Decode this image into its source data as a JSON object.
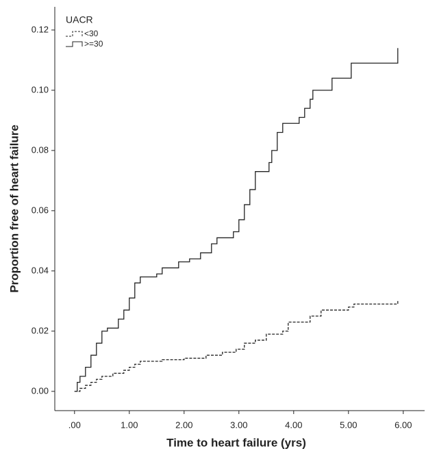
{
  "chart_data": {
    "type": "step",
    "xlabel": "Time to heart failure (yrs)",
    "ylabel": "Proportion free of heart failure",
    "legend_title": "UACR",
    "legend_position": "upper left",
    "xlim": [
      -0.36,
      6.39
    ],
    "ylim": [
      -0.0064,
      0.1277
    ],
    "xticks": [
      {
        "value": 0,
        "label": ".00"
      },
      {
        "value": 1,
        "label": "1.00"
      },
      {
        "value": 2,
        "label": "2.00"
      },
      {
        "value": 3,
        "label": "3.00"
      },
      {
        "value": 4,
        "label": "4.00"
      },
      {
        "value": 5,
        "label": "5.00"
      },
      {
        "value": 6,
        "label": "6.00"
      }
    ],
    "yticks": [
      {
        "value": 0,
        "label": "0.00"
      },
      {
        "value": 0.02,
        "label": "0.02"
      },
      {
        "value": 0.04,
        "label": "0.04"
      },
      {
        "value": 0.06,
        "label": "0.06"
      },
      {
        "value": 0.08,
        "label": "0.08"
      },
      {
        "value": 0.1,
        "label": "0.10"
      },
      {
        "value": 0.12,
        "label": "0.12"
      }
    ],
    "series": [
      {
        "name": "<30",
        "color": "#222222",
        "line_style": "dashed",
        "x": [
          0,
          0.1,
          0.2,
          0.3,
          0.4,
          0.5,
          0.7,
          0.9,
          1.0,
          1.1,
          1.2,
          1.6,
          2.0,
          2.4,
          2.7,
          2.95,
          3.1,
          3.3,
          3.5,
          3.8,
          3.9,
          4.3,
          4.5,
          4.8,
          5.0,
          5.1,
          5.9
        ],
        "values": [
          0,
          0.001,
          0.002,
          0.003,
          0.004,
          0.005,
          0.006,
          0.007,
          0.008,
          0.009,
          0.01,
          0.0105,
          0.011,
          0.012,
          0.013,
          0.014,
          0.016,
          0.017,
          0.019,
          0.02,
          0.023,
          0.025,
          0.027,
          0.027,
          0.028,
          0.029,
          0.03
        ]
      },
      {
        "name": ">=30",
        "color": "#222222",
        "line_style": "solid",
        "x": [
          0,
          0.05,
          0.1,
          0.2,
          0.3,
          0.4,
          0.5,
          0.6,
          0.8,
          0.9,
          1.0,
          1.1,
          1.2,
          1.5,
          1.6,
          1.9,
          2.1,
          2.3,
          2.5,
          2.6,
          2.9,
          3.0,
          3.1,
          3.2,
          3.3,
          3.55,
          3.6,
          3.7,
          3.8,
          4.1,
          4.2,
          4.3,
          4.35,
          4.7,
          5.05,
          5.9
        ],
        "values": [
          0,
          0.003,
          0.005,
          0.008,
          0.012,
          0.016,
          0.02,
          0.021,
          0.024,
          0.027,
          0.031,
          0.036,
          0.038,
          0.039,
          0.041,
          0.043,
          0.044,
          0.046,
          0.049,
          0.051,
          0.053,
          0.057,
          0.062,
          0.067,
          0.073,
          0.076,
          0.08,
          0.086,
          0.089,
          0.091,
          0.094,
          0.097,
          0.1,
          0.104,
          0.109,
          0.114
        ]
      }
    ]
  }
}
